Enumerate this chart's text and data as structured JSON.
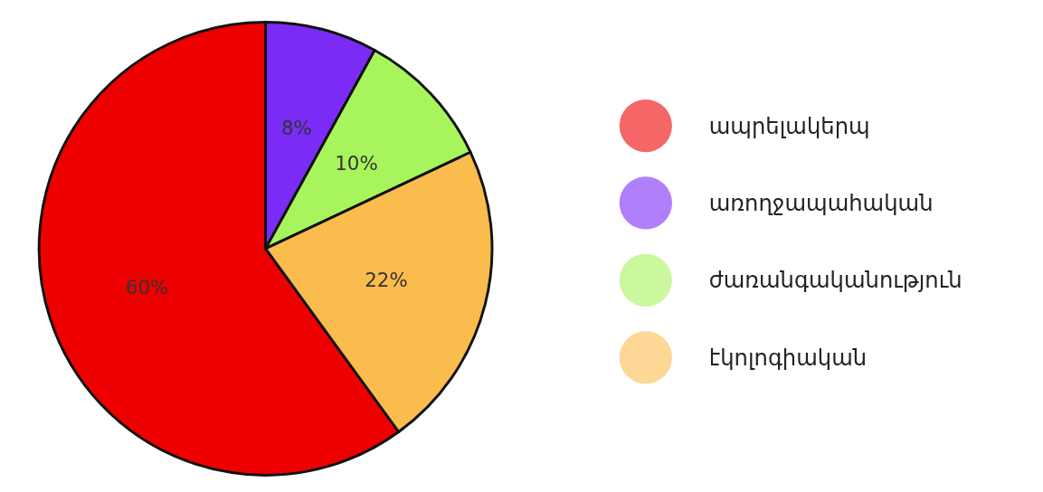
{
  "chart_data": {
    "type": "pie",
    "categories": [
      "ապրելակերպ",
      "առողջապահական",
      "ժառանգականություն",
      "էկոլոգիական"
    ],
    "values": [
      60,
      8,
      10,
      22
    ],
    "colors": [
      "#ee0000",
      "#7a2cf6",
      "#a8f45c",
      "#fbbc4e"
    ],
    "value_labels": [
      "60%",
      "8%",
      "10%",
      "22%"
    ],
    "legend": "right"
  }
}
